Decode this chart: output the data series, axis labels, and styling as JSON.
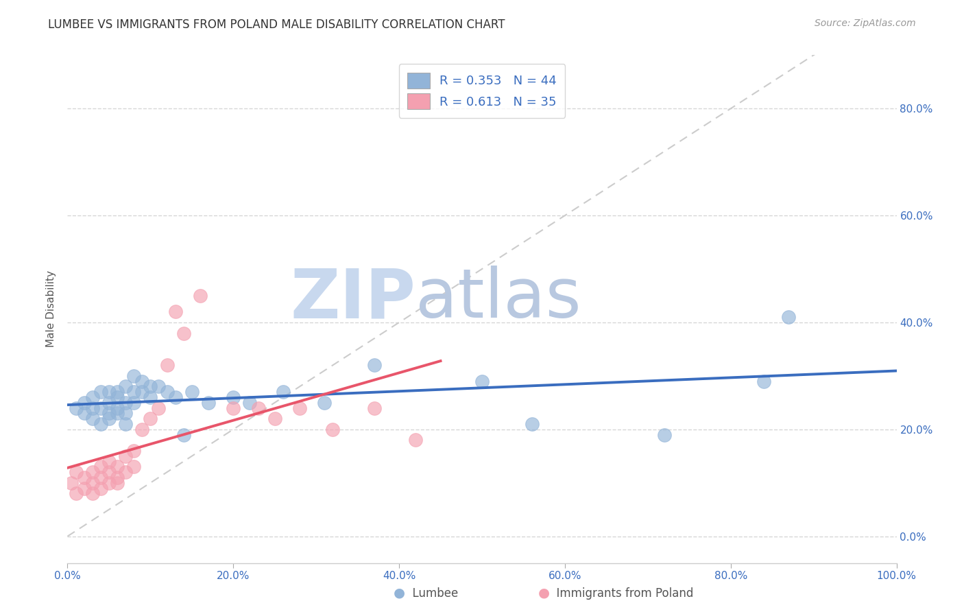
{
  "title": "LUMBEE VS IMMIGRANTS FROM POLAND MALE DISABILITY CORRELATION CHART",
  "source": "Source: ZipAtlas.com",
  "legend_labels": [
    "Lumbee",
    "Immigrants from Poland"
  ],
  "ylabel": "Male Disability",
  "watermark_zip": "ZIP",
  "watermark_atlas": "atlas",
  "xlim": [
    0.0,
    1.0
  ],
  "ylim": [
    -0.05,
    0.9
  ],
  "xticks": [
    0.0,
    0.2,
    0.4,
    0.6,
    0.8,
    1.0
  ],
  "yticks": [
    0.0,
    0.2,
    0.4,
    0.6,
    0.8
  ],
  "ytick_labels": [
    "0.0%",
    "20.0%",
    "40.0%",
    "60.0%",
    "80.0%"
  ],
  "xtick_labels": [
    "0.0%",
    "20.0%",
    "40.0%",
    "60.0%",
    "80.0%",
    "100.0%"
  ],
  "legend_r1": "R = 0.353",
  "legend_n1": "N = 44",
  "legend_r2": "R = 0.613",
  "legend_n2": "N = 35",
  "blue_color": "#92B4D8",
  "pink_color": "#F4A0B0",
  "blue_line_color": "#3A6DBF",
  "pink_line_color": "#E8556A",
  "diagonal_color": "#CCCCCC",
  "background_color": "#FFFFFF",
  "grid_color": "#CCCCCC",
  "axis_label_color": "#3A6DBF",
  "title_color": "#333333",
  "source_color": "#999999",
  "lumbee_x": [
    0.01,
    0.02,
    0.02,
    0.03,
    0.03,
    0.03,
    0.04,
    0.04,
    0.04,
    0.05,
    0.05,
    0.05,
    0.05,
    0.06,
    0.06,
    0.06,
    0.06,
    0.07,
    0.07,
    0.07,
    0.07,
    0.08,
    0.08,
    0.08,
    0.09,
    0.09,
    0.1,
    0.1,
    0.11,
    0.12,
    0.13,
    0.14,
    0.15,
    0.17,
    0.2,
    0.22,
    0.26,
    0.31,
    0.37,
    0.5,
    0.56,
    0.72,
    0.84,
    0.87
  ],
  "lumbee_y": [
    0.24,
    0.25,
    0.23,
    0.26,
    0.24,
    0.22,
    0.27,
    0.24,
    0.21,
    0.27,
    0.23,
    0.25,
    0.22,
    0.27,
    0.24,
    0.23,
    0.26,
    0.28,
    0.25,
    0.23,
    0.21,
    0.3,
    0.27,
    0.25,
    0.29,
    0.27,
    0.28,
    0.26,
    0.28,
    0.27,
    0.26,
    0.19,
    0.27,
    0.25,
    0.26,
    0.25,
    0.27,
    0.25,
    0.32,
    0.29,
    0.21,
    0.19,
    0.29,
    0.41
  ],
  "poland_x": [
    0.005,
    0.01,
    0.01,
    0.02,
    0.02,
    0.03,
    0.03,
    0.03,
    0.04,
    0.04,
    0.04,
    0.05,
    0.05,
    0.05,
    0.06,
    0.06,
    0.06,
    0.07,
    0.07,
    0.08,
    0.08,
    0.09,
    0.1,
    0.11,
    0.12,
    0.13,
    0.14,
    0.16,
    0.2,
    0.23,
    0.25,
    0.28,
    0.32,
    0.37,
    0.42
  ],
  "poland_y": [
    0.1,
    0.08,
    0.12,
    0.09,
    0.11,
    0.1,
    0.12,
    0.08,
    0.11,
    0.09,
    0.13,
    0.1,
    0.12,
    0.14,
    0.1,
    0.13,
    0.11,
    0.15,
    0.12,
    0.16,
    0.13,
    0.2,
    0.22,
    0.24,
    0.32,
    0.42,
    0.38,
    0.45,
    0.24,
    0.24,
    0.22,
    0.24,
    0.2,
    0.24,
    0.18
  ]
}
